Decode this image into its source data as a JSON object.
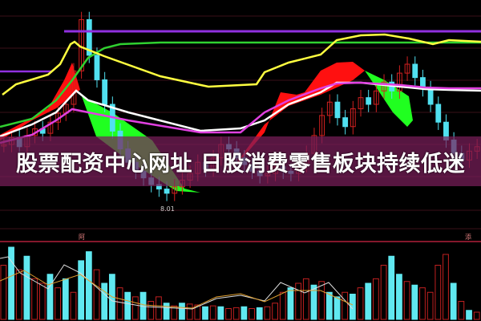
{
  "headline": "股票配资中心网址 日股消费零售板块持续低迷",
  "chart_data": {
    "type": "candlestick",
    "annotations": [
      "8.01"
    ],
    "panel_markers": [
      "阿",
      "添"
    ],
    "colors": {
      "up": "#d02020",
      "down": "#50e0f0",
      "ma_short": "#ffff40",
      "ma_long": "#30d030",
      "ribbon_up": "#ff1010",
      "ribbon_down": "#20ff20",
      "line_white": "#ffffff",
      "line_magenta": "#e040e0",
      "level": "#9030e0"
    },
    "closes": [
      10.2,
      10.5,
      10.1,
      10.6,
      10.9,
      10.7,
      11.2,
      11.6,
      12.0,
      13.5,
      15.8,
      14.2,
      13.1,
      12.0,
      10.8,
      10.0,
      9.4,
      9.0,
      8.7,
      8.4,
      8.2,
      8.01,
      8.3,
      8.6,
      8.9,
      9.4,
      9.1,
      9.6,
      10.2,
      10.0,
      9.6,
      9.3,
      9.0,
      8.8,
      8.9,
      9.2,
      9.0,
      8.9,
      9.3,
      9.8,
      10.6,
      11.5,
      12.1,
      11.4,
      11.0,
      11.8,
      12.3,
      12.0,
      12.6,
      13.0,
      12.6,
      13.4,
      13.8,
      13.2,
      12.7,
      12.0,
      11.2,
      10.4,
      9.8,
      9.5,
      9.9,
      10.1
    ],
    "volume": [
      60,
      80,
      55,
      70,
      45,
      40,
      50,
      35,
      45,
      30,
      65,
      75,
      55,
      40,
      50,
      35,
      30,
      25,
      30,
      20,
      25,
      18,
      15,
      18,
      17,
      16,
      14,
      15,
      14,
      12,
      13,
      14,
      12,
      13,
      14,
      18,
      30,
      35,
      40,
      45,
      38,
      42,
      30,
      25,
      30,
      28,
      35,
      40,
      45,
      60,
      70,
      50,
      42,
      38,
      35,
      30,
      60,
      72,
      40,
      20,
      10,
      8
    ],
    "volume_up": [
      1,
      0,
      1,
      0,
      1,
      1,
      0,
      1,
      0,
      1,
      0,
      0,
      1,
      0,
      0,
      1,
      0,
      1,
      0,
      1,
      1,
      0,
      1,
      0,
      1,
      1,
      0,
      1,
      0,
      1,
      1,
      0,
      1,
      0,
      1,
      1,
      1,
      0,
      1,
      1,
      0,
      1,
      0,
      0,
      1,
      0,
      1,
      0,
      1,
      1,
      0,
      0,
      1,
      0,
      1,
      1,
      1,
      1,
      0,
      1,
      0,
      1
    ]
  }
}
